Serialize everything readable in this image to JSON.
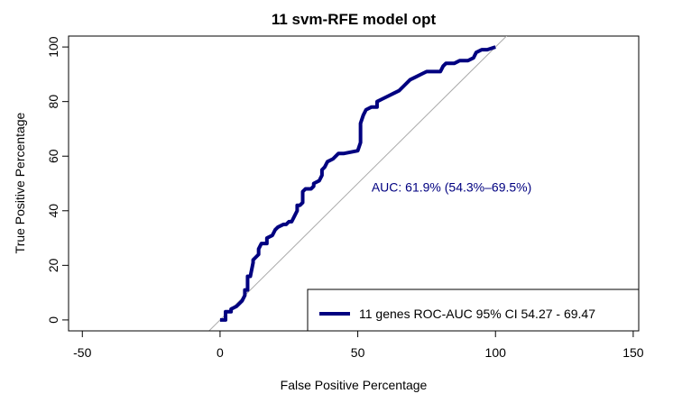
{
  "colors": {
    "roc": "#000080",
    "diagonal": "#aaaaaa",
    "annotation": "#000080"
  },
  "chart_data": {
    "type": "line",
    "title": "11 svm-RFE model opt",
    "xlabel": "False Positive Percentage",
    "ylabel": "True Positive Percentage",
    "xlim": [
      -55,
      152
    ],
    "ylim": [
      -4,
      104
    ],
    "x_ticks": [
      -50,
      0,
      50,
      100,
      150
    ],
    "y_ticks": [
      0,
      20,
      40,
      60,
      80,
      100
    ],
    "grid": false,
    "legend_position": "bottom-right",
    "annotation": {
      "text": "AUC: 61.9% (54.3%–69.5%)",
      "x": 55,
      "y": 47
    },
    "series": [
      {
        "name": "11 genes ROC-AUC 95% CI  54.27 - 69.47",
        "x": [
          0,
          2,
          2,
          4,
          4,
          6,
          8,
          9,
          9,
          10,
          10,
          11,
          12,
          12,
          13,
          14,
          14,
          15,
          17,
          17,
          19,
          20,
          21,
          23,
          24,
          25,
          26,
          27,
          28,
          28,
          29,
          30,
          30,
          31,
          33,
          34,
          34,
          36,
          37,
          37,
          38,
          39,
          41,
          41,
          43,
          45,
          50,
          51,
          51,
          52,
          53,
          55,
          57,
          57,
          59,
          61,
          63,
          65,
          67,
          69,
          71,
          73,
          75,
          80,
          81,
          82,
          85,
          87,
          90,
          92,
          93,
          95,
          97,
          100
        ],
        "y": [
          0,
          0,
          3,
          3,
          4,
          5,
          7,
          9,
          11,
          11,
          16,
          16,
          21,
          22,
          23,
          24,
          26,
          28,
          28,
          30,
          31,
          33,
          34,
          35,
          35,
          36,
          36,
          38,
          40,
          42,
          42,
          43,
          47,
          48,
          48,
          49,
          50,
          51,
          53,
          55,
          56,
          58,
          59,
          59,
          61,
          61,
          62,
          65,
          72,
          75,
          77,
          78,
          78,
          80,
          81,
          82,
          83,
          84,
          86,
          88,
          89,
          90,
          91,
          91,
          93,
          94,
          94,
          95,
          95,
          96,
          98,
          99,
          99,
          100
        ]
      }
    ],
    "reference_line": {
      "x": [
        -5,
        105
      ],
      "y": [
        -5,
        105
      ]
    }
  }
}
